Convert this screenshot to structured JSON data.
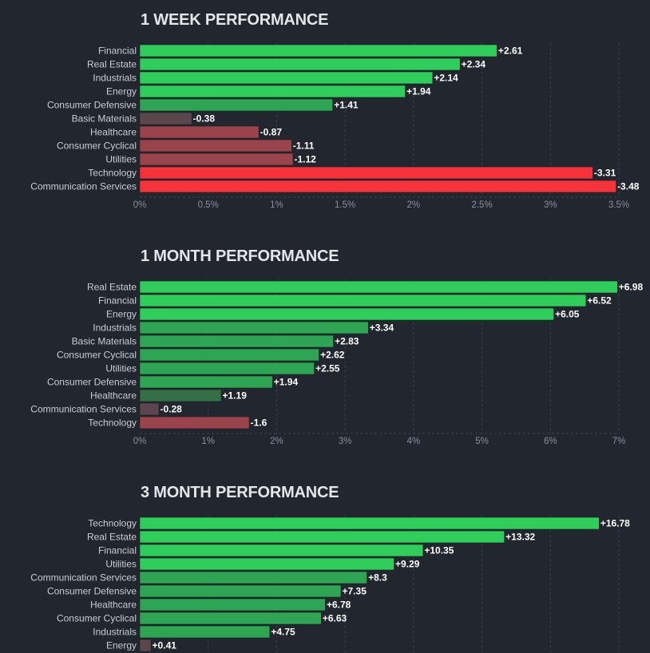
{
  "colors": {
    "background": "#22262f",
    "title": "#e4e6ea",
    "category_label": "#c9cdd5",
    "tick_label": "#8a909c",
    "value_label": "#ffffff",
    "grid": "#3b4150",
    "positive_strong": "#2fcd5a",
    "positive_medium": "#2ea552",
    "positive_weak": "#356f47",
    "negative_weak": "#5b464d",
    "negative_medium": "#9a434b",
    "negative_strong": "#f6323b"
  },
  "chart_data": [
    {
      "type": "bar",
      "orientation": "horizontal",
      "title": "1 WEEK PERFORMANCE",
      "categories": [
        "Financial",
        "Real Estate",
        "Industrials",
        "Energy",
        "Consumer Defensive",
        "Basic Materials",
        "Healthcare",
        "Consumer Cyclical",
        "Utilities",
        "Technology",
        "Communication Services"
      ],
      "values": [
        2.61,
        2.34,
        2.14,
        1.94,
        1.41,
        -0.38,
        -0.87,
        -1.11,
        -1.12,
        -3.31,
        -3.48
      ],
      "value_labels": [
        "+2.61",
        "+2.34",
        "+2.14",
        "+1.94",
        "+1.41",
        "-0.38",
        "-0.87",
        "-1.11",
        "-1.12",
        "-3.31",
        "-3.48"
      ],
      "ticks": [
        "0%",
        "0.5%",
        "1%",
        "1.5%",
        "2%",
        "2.5%",
        "3%",
        "3.5%"
      ],
      "xlim": [
        0,
        3.5
      ],
      "scale": "absolute value",
      "grid": true
    },
    {
      "type": "bar",
      "orientation": "horizontal",
      "title": "1 MONTH PERFORMANCE",
      "categories": [
        "Real Estate",
        "Financial",
        "Energy",
        "Industrials",
        "Basic Materials",
        "Consumer Cyclical",
        "Utilities",
        "Consumer Defensive",
        "Healthcare",
        "Communication Services",
        "Technology"
      ],
      "values": [
        6.98,
        6.52,
        6.05,
        3.34,
        2.83,
        2.62,
        2.55,
        1.94,
        1.19,
        -0.28,
        -1.6
      ],
      "value_labels": [
        "+6.98",
        "+6.52",
        "+6.05",
        "+3.34",
        "+2.83",
        "+2.62",
        "+2.55",
        "+1.94",
        "+1.19",
        "-0.28",
        "-1.6"
      ],
      "ticks": [
        "0%",
        "1%",
        "2%",
        "3%",
        "4%",
        "5%",
        "6%",
        "7%"
      ],
      "xlim": [
        0,
        7
      ],
      "scale": "absolute value",
      "grid": true
    },
    {
      "type": "bar",
      "orientation": "horizontal",
      "title": "3 MONTH PERFORMANCE",
      "categories": [
        "Technology",
        "Real Estate",
        "Financial",
        "Utilities",
        "Communication Services",
        "Consumer Defensive",
        "Healthcare",
        "Consumer Cyclical",
        "Industrials",
        "Energy"
      ],
      "values": [
        16.78,
        13.32,
        10.35,
        9.29,
        8.3,
        7.35,
        6.78,
        6.63,
        4.75,
        0.41
      ],
      "value_labels": [
        "+16.78",
        "+13.32",
        "+10.35",
        "+9.29",
        "+8.3",
        "+7.35",
        "+6.78",
        "+6.63",
        "+4.75",
        "+0.41"
      ],
      "ticks": [],
      "xlim": [
        0,
        17.5
      ],
      "scale": "absolute value",
      "grid": true
    }
  ]
}
